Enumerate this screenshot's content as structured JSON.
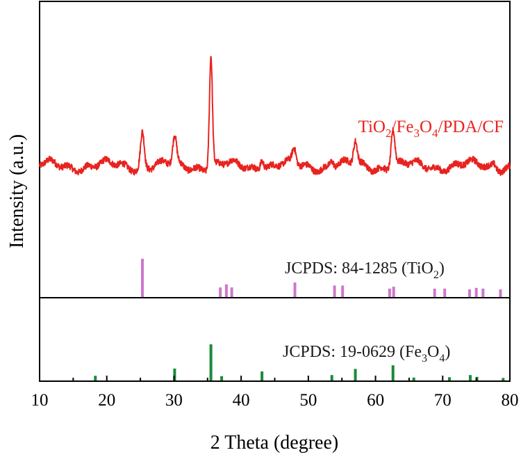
{
  "chart_data": {
    "type": "line",
    "xlabel": "2 Theta (degree)",
    "ylabel": "Intensity (a.u.)",
    "xlim": [
      10,
      80
    ],
    "xticks": [
      "10",
      "20",
      "30",
      "40",
      "50",
      "60",
      "70",
      "80"
    ],
    "colors": {
      "sample": "#e8231f",
      "tio2": "#cc78cc",
      "fe3o4": "#1a8a3a",
      "axis": "#000000"
    },
    "series": [
      {
        "name": "TiO2/Fe3O4/PDA/CF",
        "label_parts": {
          "p1": "TiO",
          "s1": "2",
          "p2": "/Fe",
          "s2": "3",
          "p3": "O",
          "s3": "4",
          "p4": "/PDA/CF"
        },
        "baseline": 0.15,
        "noise": 0.03,
        "peaks": [
          {
            "x": 25.3,
            "h": 0.43
          },
          {
            "x": 30.1,
            "h": 0.33
          },
          {
            "x": 35.5,
            "h": 1.35
          },
          {
            "x": 43.1,
            "h": 0.13
          },
          {
            "x": 47.9,
            "h": 0.18
          },
          {
            "x": 53.5,
            "h": 0.08
          },
          {
            "x": 57.0,
            "h": 0.28
          },
          {
            "x": 62.6,
            "h": 0.45
          },
          {
            "x": 77.7,
            "h": 0.05
          }
        ]
      }
    ],
    "references": [
      {
        "name": "JCPDS: 84-1285 (TiO2)",
        "label_parts": {
          "p1": "JCPDS: 84-1285 (TiO",
          "s1": "2",
          "p2": ")"
        },
        "lines": [
          {
            "x": 25.3,
            "h": 100
          },
          {
            "x": 36.9,
            "h": 25
          },
          {
            "x": 37.8,
            "h": 33
          },
          {
            "x": 38.6,
            "h": 25
          },
          {
            "x": 48.0,
            "h": 38
          },
          {
            "x": 53.9,
            "h": 30
          },
          {
            "x": 55.1,
            "h": 30
          },
          {
            "x": 62.1,
            "h": 22
          },
          {
            "x": 62.7,
            "h": 27
          },
          {
            "x": 68.8,
            "h": 22
          },
          {
            "x": 70.3,
            "h": 22
          },
          {
            "x": 74.0,
            "h": 20
          },
          {
            "x": 75.0,
            "h": 24
          },
          {
            "x": 76.0,
            "h": 22
          },
          {
            "x": 78.6,
            "h": 20
          }
        ]
      },
      {
        "name": "JCPDS: 19-0629 (Fe3O4)",
        "label_parts": {
          "p1": "JCPDS: 19-0629 (Fe",
          "s1": "3",
          "p2": "O",
          "s2": "4",
          "p3": ")"
        },
        "lines": [
          {
            "x": 18.3,
            "h": 13
          },
          {
            "x": 30.1,
            "h": 33
          },
          {
            "x": 35.5,
            "h": 100
          },
          {
            "x": 37.1,
            "h": 12
          },
          {
            "x": 43.1,
            "h": 25
          },
          {
            "x": 53.5,
            "h": 15
          },
          {
            "x": 57.0,
            "h": 32
          },
          {
            "x": 62.6,
            "h": 42
          },
          {
            "x": 65.7,
            "h": 8
          },
          {
            "x": 71.0,
            "h": 9
          },
          {
            "x": 74.1,
            "h": 15
          },
          {
            "x": 75.1,
            "h": 10
          },
          {
            "x": 79.0,
            "h": 7
          }
        ]
      }
    ]
  }
}
